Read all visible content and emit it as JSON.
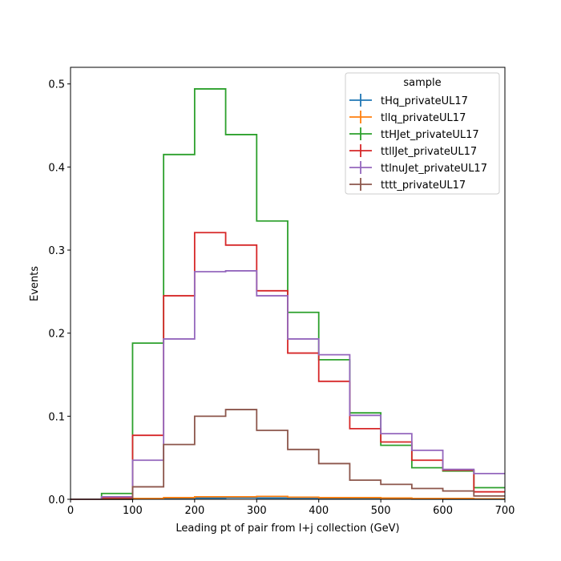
{
  "chart_data": {
    "type": "step-histogram",
    "xlabel": "Leading pt of pair from l+j collection (GeV)",
    "ylabel": "Events",
    "xlim": [
      0,
      700
    ],
    "ylim": [
      0,
      0.52
    ],
    "xticks": [
      0,
      100,
      200,
      300,
      400,
      500,
      600,
      700
    ],
    "yticks": [
      0.0,
      0.1,
      0.2,
      0.3,
      0.4,
      0.5
    ],
    "xtick_labels": [
      "0",
      "100",
      "200",
      "300",
      "400",
      "500",
      "600",
      "700"
    ],
    "ytick_labels": [
      "0.0",
      "0.1",
      "0.2",
      "0.3",
      "0.4",
      "0.5"
    ],
    "grid": false,
    "legend": {
      "title": "sample",
      "placement": "top-right"
    },
    "bin_edges": [
      0,
      50,
      100,
      150,
      200,
      250,
      300,
      350,
      400,
      450,
      500,
      550,
      600,
      650,
      700
    ],
    "series": [
      {
        "name": "tHq_privateUL17",
        "color": "#1f77b4",
        "values": [
          0,
          0,
          0.0005,
          0.001,
          0.0015,
          0.002,
          0.0015,
          0.001,
          0.001,
          0.0005,
          0.0005,
          0.0003,
          0.0002,
          0.0002
        ]
      },
      {
        "name": "tllq_privateUL17",
        "color": "#ff7f0e",
        "values": [
          0,
          0.0003,
          0.001,
          0.002,
          0.003,
          0.003,
          0.0035,
          0.0025,
          0.002,
          0.002,
          0.0015,
          0.001,
          0.001,
          0.0005
        ]
      },
      {
        "name": "ttHJet_privateUL17",
        "color": "#2ca02c",
        "values": [
          0,
          0.007,
          0.188,
          0.415,
          0.494,
          0.439,
          0.335,
          0.225,
          0.168,
          0.104,
          0.065,
          0.038,
          0.034,
          0.014
        ]
      },
      {
        "name": "ttllJet_privateUL17",
        "color": "#d62728",
        "values": [
          0,
          0.002,
          0.077,
          0.245,
          0.321,
          0.306,
          0.251,
          0.176,
          0.142,
          0.085,
          0.069,
          0.047,
          0.035,
          0.009
        ]
      },
      {
        "name": "ttlnuJet_privateUL17",
        "color": "#9467bd",
        "values": [
          0,
          0.003,
          0.047,
          0.193,
          0.274,
          0.275,
          0.245,
          0.193,
          0.174,
          0.101,
          0.079,
          0.059,
          0.036,
          0.031
        ]
      },
      {
        "name": "tttt_privateUL17",
        "color": "#8c564b",
        "values": [
          0,
          0,
          0.015,
          0.066,
          0.1,
          0.108,
          0.083,
          0.06,
          0.043,
          0.023,
          0.018,
          0.013,
          0.01,
          0.004
        ]
      }
    ]
  }
}
